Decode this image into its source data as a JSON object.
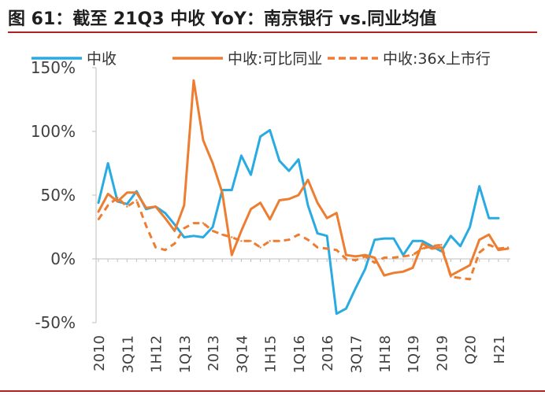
{
  "title": "图 61：截至 21Q3 中收 YoY：南京银行 vs.同业均值",
  "chart_data": {
    "type": "line",
    "title": "图 61：截至 21Q3 中收 YoY：南京银行 vs.同业均值",
    "ylim": [
      -50,
      150
    ],
    "yticks": [
      -50,
      0,
      50,
      100,
      150
    ],
    "ytick_labels": [
      "-50%",
      "0%",
      "50%",
      "100%",
      "150%"
    ],
    "grid": false,
    "legend_position": "top",
    "xtick_labels": [
      "2010",
      "3Q11",
      "1H12",
      "1Q13",
      "2013",
      "3Q14",
      "1H15",
      "1Q16",
      "2016",
      "3Q17",
      "1H18",
      "1Q19",
      "2019",
      "Q20",
      "H21"
    ],
    "xtick_index": [
      0,
      3,
      6,
      9,
      12,
      15,
      18,
      21,
      24,
      27,
      30,
      33,
      36,
      39,
      42
    ],
    "x_count": 44,
    "series": [
      {
        "name": "中收",
        "color": "#29abe2",
        "style": "solid",
        "values": [
          44,
          75,
          45,
          43,
          53,
          39,
          41,
          36,
          27,
          17,
          18,
          17,
          25,
          54,
          54,
          81,
          66,
          96,
          101,
          77,
          69,
          78,
          42,
          20,
          18,
          -43,
          -39,
          -23,
          -8,
          15,
          16,
          16,
          3,
          14,
          14,
          10,
          6,
          18,
          10,
          25,
          57,
          32,
          32,
          null
        ]
      },
      {
        "name": "中收:可比同业",
        "color": "#ed7d31",
        "style": "solid",
        "values": [
          37,
          51,
          45,
          52,
          52,
          40,
          41,
          32,
          22,
          42,
          140,
          93,
          75,
          52,
          3,
          22,
          39,
          44,
          31,
          46,
          47,
          50,
          62,
          44,
          32,
          36,
          3,
          2,
          3,
          1,
          -13,
          -11,
          -10,
          -7,
          12,
          8,
          9,
          -13,
          -9,
          -5,
          15,
          19,
          7,
          8
        ]
      },
      {
        "name": "中收:36x上市行",
        "color": "#ed7d31",
        "style": "dashed",
        "values": [
          31,
          42,
          48,
          41,
          46,
          26,
          9,
          7,
          12,
          24,
          28,
          28,
          22,
          19,
          17,
          14,
          14,
          9,
          14,
          14,
          15,
          19,
          15,
          9,
          8,
          7,
          0,
          -1,
          2,
          -3,
          1,
          1,
          2,
          3,
          8,
          10,
          11,
          -14,
          -15,
          -16,
          5,
          11,
          8,
          9
        ]
      }
    ]
  }
}
